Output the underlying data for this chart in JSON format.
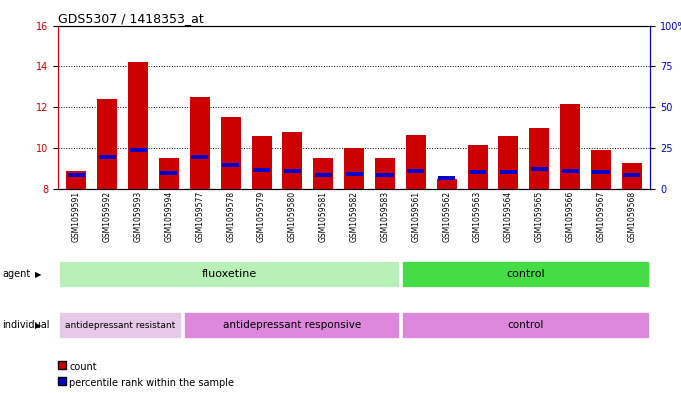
{
  "title": "GDS5307 / 1418353_at",
  "samples": [
    "GSM1059591",
    "GSM1059592",
    "GSM1059593",
    "GSM1059594",
    "GSM1059577",
    "GSM1059578",
    "GSM1059579",
    "GSM1059580",
    "GSM1059581",
    "GSM1059582",
    "GSM1059583",
    "GSM1059561",
    "GSM1059562",
    "GSM1059563",
    "GSM1059564",
    "GSM1059565",
    "GSM1059566",
    "GSM1059567",
    "GSM1059568"
  ],
  "red_heights": [
    8.85,
    12.4,
    14.2,
    9.5,
    12.5,
    11.5,
    10.6,
    10.8,
    9.5,
    10.0,
    9.5,
    10.65,
    8.45,
    10.15,
    10.6,
    10.95,
    12.15,
    9.9,
    9.25
  ],
  "blue_values": [
    8.65,
    9.55,
    9.9,
    8.75,
    9.55,
    9.15,
    8.9,
    8.85,
    8.65,
    8.7,
    8.65,
    8.85,
    8.5,
    8.8,
    8.8,
    8.95,
    8.85,
    8.8,
    8.65
  ],
  "ymin": 8,
  "ymax": 16,
  "yticks": [
    8,
    10,
    12,
    14,
    16
  ],
  "right_yticks": [
    0,
    25,
    50,
    75,
    100
  ],
  "bar_color": "#cc0000",
  "blue_color": "#0000cc",
  "fluoxetine_color_light": "#b8f0b8",
  "fluoxetine_color_dark": "#44dd44",
  "control_color": "#33cc33",
  "resistant_color": "#e8c8e8",
  "responsive_color": "#dd88dd",
  "indiv_control_color": "#dd88dd",
  "gray_bg": "#d8d8d8"
}
